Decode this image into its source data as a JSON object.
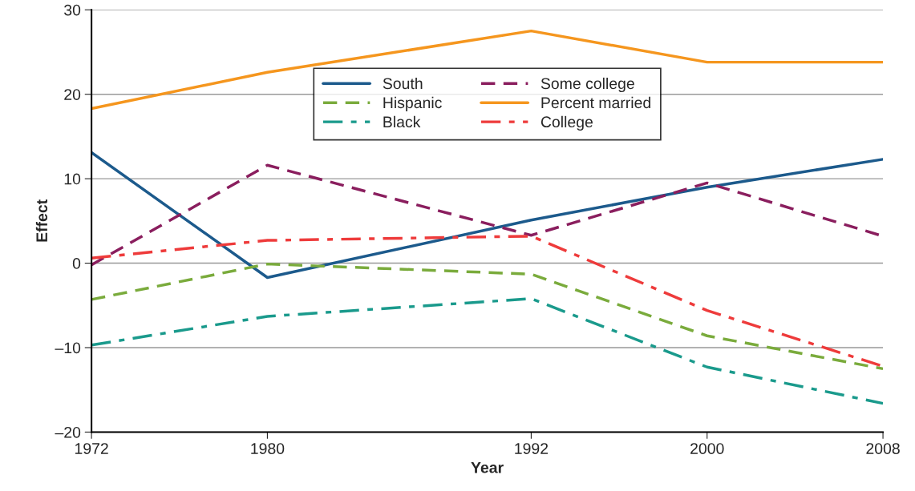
{
  "chart_data": {
    "type": "line",
    "xlabel": "Year",
    "ylabel": "Effect",
    "x": [
      1972,
      1980,
      1992,
      2000,
      2008
    ],
    "xlim": [
      1972,
      2008
    ],
    "xticks": [
      1972,
      1980,
      1992,
      2000,
      2008
    ],
    "ylim": [
      -20,
      30
    ],
    "yticks": [
      {
        "value": -20,
        "label": "–20"
      },
      {
        "value": -10,
        "label": "–10"
      },
      0,
      10,
      20,
      30
    ],
    "grid": "y",
    "legend": "top",
    "marker": "none",
    "series": [
      {
        "name": "South",
        "color": "#1c5a8c",
        "line_style": "solid",
        "values": [
          13.1,
          -1.7,
          5.1,
          9.0,
          12.3
        ]
      },
      {
        "name": "Hispanic",
        "color": "#7aab3c",
        "line_style": "dashed",
        "values": [
          -4.3,
          -0.1,
          -1.3,
          -8.6,
          -12.5
        ]
      },
      {
        "name": "Black",
        "color": "#1a9a8c",
        "line_style": "dashdot",
        "values": [
          -9.7,
          -6.3,
          -4.2,
          -12.3,
          -16.6
        ]
      },
      {
        "name": "Some college",
        "color": "#8a1e5e",
        "line_style": "dashed",
        "values": [
          -0.2,
          11.6,
          3.3,
          9.5,
          3.2
        ]
      },
      {
        "name": "Percent married",
        "color": "#f5961e",
        "line_style": "solid",
        "values": [
          18.3,
          22.6,
          27.5,
          23.8,
          23.8
        ]
      },
      {
        "name": "College",
        "color": "#ee3b3b",
        "line_style": "dashdot",
        "values": [
          0.6,
          2.7,
          3.2,
          -5.6,
          -12.2
        ]
      }
    ]
  }
}
